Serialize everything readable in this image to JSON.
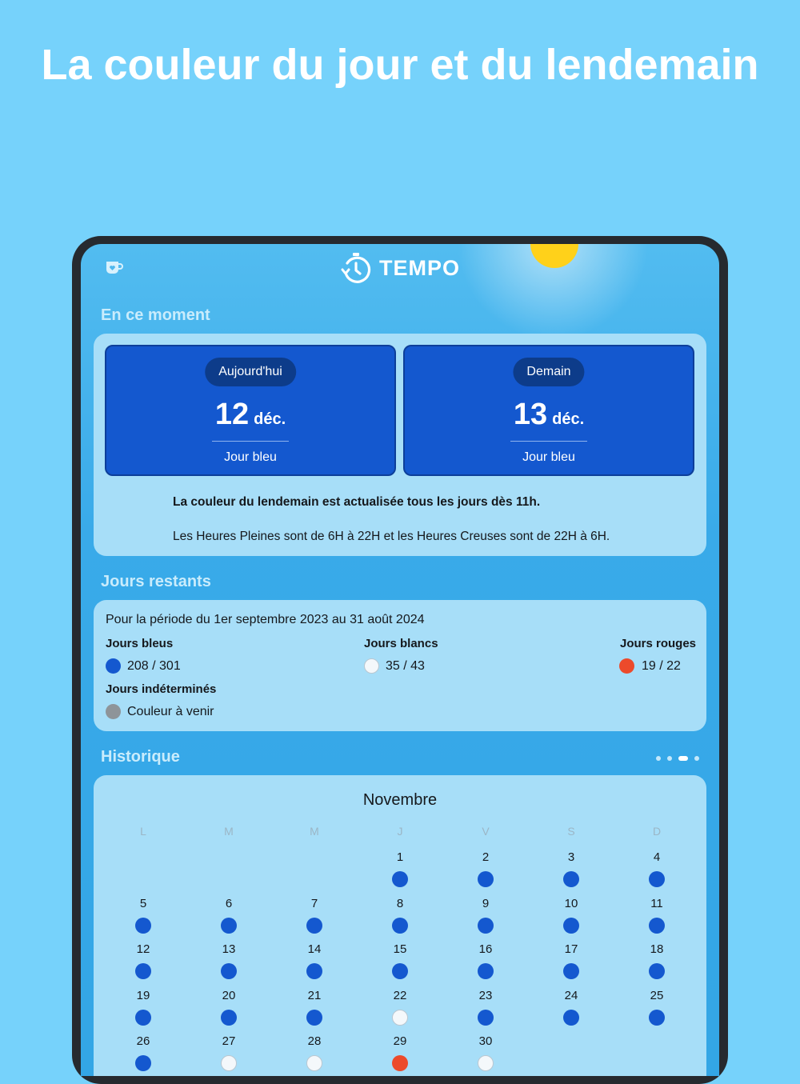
{
  "headline": "La couleur du jour et du lendemain",
  "app": {
    "name": "TEMPO"
  },
  "colors": {
    "blue": "#1458cf",
    "white": "#f4f8fb",
    "red": "#ec4a2b",
    "undetermined": "#8e9499"
  },
  "now_section": {
    "title": "En ce moment",
    "today": {
      "label": "Aujourd'hui",
      "day": "12",
      "month": "déc.",
      "color_label": "Jour bleu"
    },
    "tomorrow": {
      "label": "Demain",
      "day": "13",
      "month": "déc.",
      "color_label": "Jour bleu"
    },
    "update_note": "La couleur du lendemain est actualisée tous les jours dès 11h.",
    "hours_note": "Les Heures Pleines sont de 6H à 22H et les Heures Creuses sont de 22H à 6H."
  },
  "remaining": {
    "title": "Jours restants",
    "period": "Pour la période du 1er septembre 2023 au 31 août 2024",
    "blue": {
      "label": "Jours bleus",
      "value": "208 / 301"
    },
    "white": {
      "label": "Jours blancs",
      "value": "35 / 43"
    },
    "red": {
      "label": "Jours rouges",
      "value": "19 / 22"
    },
    "undetermined": {
      "label": "Jours indéterminés",
      "value": "Couleur à venir"
    }
  },
  "history": {
    "title": "Historique",
    "pages": 4,
    "active_page": 3,
    "month": "Novembre",
    "weekdays": [
      "L",
      "M",
      "M",
      "J",
      "V",
      "S",
      "D"
    ],
    "first_weekday_index": 3,
    "days": [
      {
        "d": "1",
        "c": "blue"
      },
      {
        "d": "2",
        "c": "blue"
      },
      {
        "d": "3",
        "c": "blue"
      },
      {
        "d": "4",
        "c": "blue"
      },
      {
        "d": "5",
        "c": "blue"
      },
      {
        "d": "6",
        "c": "blue"
      },
      {
        "d": "7",
        "c": "blue"
      },
      {
        "d": "8",
        "c": "blue"
      },
      {
        "d": "9",
        "c": "blue"
      },
      {
        "d": "10",
        "c": "blue"
      },
      {
        "d": "11",
        "c": "blue"
      },
      {
        "d": "12",
        "c": "blue"
      },
      {
        "d": "13",
        "c": "blue"
      },
      {
        "d": "14",
        "c": "blue"
      },
      {
        "d": "15",
        "c": "blue"
      },
      {
        "d": "16",
        "c": "blue"
      },
      {
        "d": "17",
        "c": "blue"
      },
      {
        "d": "18",
        "c": "blue"
      },
      {
        "d": "19",
        "c": "blue"
      },
      {
        "d": "20",
        "c": "blue"
      },
      {
        "d": "21",
        "c": "blue"
      },
      {
        "d": "22",
        "c": "white"
      },
      {
        "d": "23",
        "c": "blue"
      },
      {
        "d": "24",
        "c": "blue"
      },
      {
        "d": "25",
        "c": "blue"
      },
      {
        "d": "26",
        "c": "blue"
      },
      {
        "d": "27",
        "c": "white"
      },
      {
        "d": "28",
        "c": "white"
      },
      {
        "d": "29",
        "c": "red"
      },
      {
        "d": "30",
        "c": "white"
      }
    ]
  }
}
